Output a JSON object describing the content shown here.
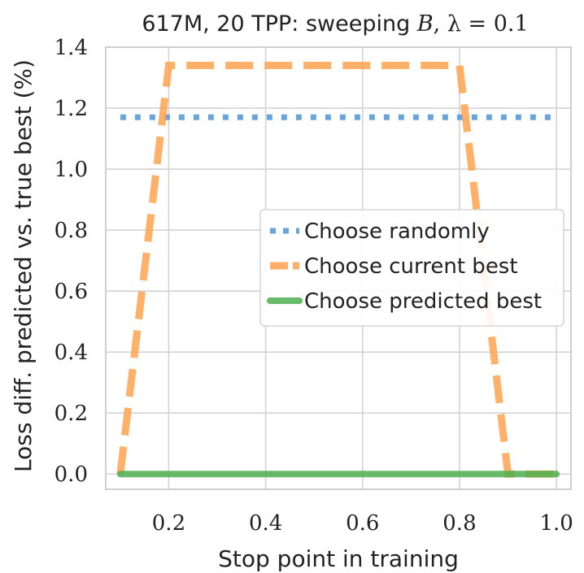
{
  "chart_data": {
    "type": "line",
    "title_text": "617M, 20 TPP: sweeping ",
    "title_var": "B",
    "title_lambda_part": ", λ = 0.1",
    "xlabel": "Stop point in training",
    "ylabel": "Loss diff. predicted vs. true best (%)",
    "xlim": [
      0.07,
      1.03
    ],
    "ylim": [
      -0.05,
      1.4
    ],
    "xticks": [
      0.2,
      0.4,
      0.6,
      0.8,
      1.0
    ],
    "xtick_labels": [
      "0.2",
      "0.4",
      "0.6",
      "0.8",
      "1.0"
    ],
    "yticks": [
      0.0,
      0.2,
      0.4,
      0.6,
      0.8,
      1.0,
      1.2,
      1.4
    ],
    "ytick_labels": [
      "0.0",
      "0.2",
      "0.4",
      "0.6",
      "0.8",
      "1.0",
      "1.2",
      "1.4"
    ],
    "grid": true,
    "legend_position": "center-right",
    "series": [
      {
        "name": "Choose randomly",
        "color": "#5a9bd5",
        "style": "dotted",
        "x": [
          0.1,
          1.0
        ],
        "y": [
          1.17,
          1.17
        ]
      },
      {
        "name": "Choose current best",
        "color": "#ffa24f",
        "style": "dashed",
        "x": [
          0.1,
          0.2,
          0.8,
          0.9,
          1.0
        ],
        "y": [
          0.0,
          1.34,
          1.34,
          0.0,
          0.0
        ]
      },
      {
        "name": "Choose predicted best",
        "color": "#4caf50",
        "style": "solid",
        "x": [
          0.1,
          0.2,
          0.3,
          0.4,
          0.5,
          0.6,
          0.7,
          0.8,
          0.9,
          1.0
        ],
        "y": [
          0,
          0,
          0,
          0,
          0,
          0,
          0,
          0,
          0,
          0
        ]
      }
    ]
  }
}
